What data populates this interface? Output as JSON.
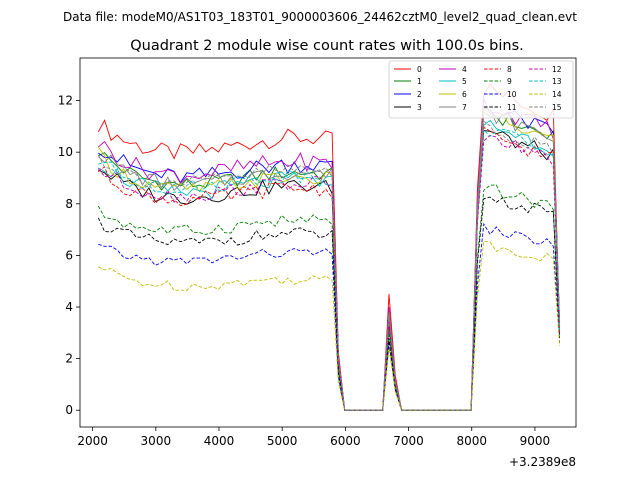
{
  "chart_data": {
    "type": "line",
    "suptitle": "Data file: modeM0/AS1T03_183T01_9000003606_24462cztM0_level2_quad_clean.evt",
    "title": "Quadrant 2 module wise count rates with 100.0s bins.",
    "xlabel": "",
    "ylabel": "",
    "x_offset_label": "+3.2389e8",
    "xlim": [
      1800,
      9650
    ],
    "ylim": [
      -0.65,
      13.65
    ],
    "xticks": [
      2000,
      3000,
      4000,
      5000,
      6000,
      7000,
      8000,
      9000
    ],
    "xtick_labels": [
      "2000",
      "3000",
      "4000",
      "5000",
      "6000",
      "7000",
      "8000",
      "9000"
    ],
    "yticks": [
      0,
      2,
      4,
      6,
      8,
      10,
      12
    ],
    "ytick_labels": [
      "0",
      "2",
      "4",
      "6",
      "8",
      "10",
      "12"
    ],
    "grid": false,
    "legend_placement": "top-right",
    "legend_columns": 4,
    "segments": [
      {
        "x_start": 2090,
        "x_end": 5790,
        "step": 100,
        "role": "active"
      },
      {
        "x": [
          5890,
          5990,
          6090,
          6190,
          6290,
          6390,
          6490,
          6590,
          6690,
          6790,
          6890,
          6990,
          7090,
          7190,
          7290,
          7390,
          7490,
          7590,
          7690,
          7790,
          7890,
          7990
        ],
        "role": "gap"
      },
      {
        "x_start": 8090,
        "x_end": 9290,
        "step": 100,
        "role": "active"
      },
      {
        "x": [
          9390
        ],
        "role": "tail"
      }
    ],
    "spike_shape": {
      "6590": 0.0,
      "6690": 1.0,
      "6790": 0.3
    },
    "series": [
      {
        "name": "0",
        "color": "#ff0000",
        "dashed": false,
        "base": 10.2,
        "high": 11.9,
        "spike": 4.5,
        "wiggle": 0.35,
        "end": 3.0
      },
      {
        "name": "1",
        "color": "#008000",
        "dashed": false,
        "base": 8.9,
        "high": 11.0,
        "spike": 3.6,
        "wiggle": 0.3,
        "end": 3.2
      },
      {
        "name": "2",
        "color": "#0000ff",
        "dashed": false,
        "base": 9.2,
        "high": 11.2,
        "spike": 3.9,
        "wiggle": 0.35,
        "end": 3.4
      },
      {
        "name": "3",
        "color": "#000000",
        "dashed": false,
        "base": 8.4,
        "high": 10.3,
        "spike": 3.3,
        "wiggle": 0.3,
        "end": 3.0
      },
      {
        "name": "4",
        "color": "#bf00bf",
        "dashed": false,
        "base": 9.3,
        "high": 11.3,
        "spike": 4.0,
        "wiggle": 0.35,
        "end": 3.3
      },
      {
        "name": "5",
        "color": "#00bfbf",
        "dashed": false,
        "base": 8.6,
        "high": 10.6,
        "spike": 3.7,
        "wiggle": 0.35,
        "end": 3.1
      },
      {
        "name": "6",
        "color": "#bfbf00",
        "dashed": false,
        "base": 8.7,
        "high": 10.9,
        "spike": 3.8,
        "wiggle": 0.3,
        "end": 3.2
      },
      {
        "name": "7",
        "color": "#808080",
        "dashed": false,
        "base": 8.9,
        "high": 11.0,
        "spike": 3.8,
        "wiggle": 0.3,
        "end": 3.3
      },
      {
        "name": "8",
        "color": "#ff0000",
        "dashed": true,
        "base": 8.3,
        "high": 10.2,
        "spike": 3.4,
        "wiggle": 0.3,
        "end": 3.0
      },
      {
        "name": "9",
        "color": "#008000",
        "dashed": true,
        "base": 7.1,
        "high": 8.2,
        "spike": 3.0,
        "wiggle": 0.25,
        "end": 2.9
      },
      {
        "name": "10",
        "color": "#0000ff",
        "dashed": true,
        "base": 5.9,
        "high": 6.7,
        "spike": 2.6,
        "wiggle": 0.2,
        "end": 2.6
      },
      {
        "name": "11",
        "color": "#000000",
        "dashed": true,
        "base": 6.6,
        "high": 7.9,
        "spike": 2.8,
        "wiggle": 0.25,
        "end": 2.8
      },
      {
        "name": "12",
        "color": "#bf00bf",
        "dashed": true,
        "base": 8.5,
        "high": 10.1,
        "spike": 3.5,
        "wiggle": 0.3,
        "end": 3.0
      },
      {
        "name": "13",
        "color": "#00bfbf",
        "dashed": true,
        "base": 8.8,
        "high": 10.4,
        "spike": 3.6,
        "wiggle": 0.3,
        "end": 3.1
      },
      {
        "name": "14",
        "color": "#bfbf00",
        "dashed": true,
        "base": 4.9,
        "high": 6.1,
        "spike": 2.4,
        "wiggle": 0.2,
        "end": 2.5
      },
      {
        "name": "15",
        "color": "#808080",
        "dashed": true,
        "base": 9.0,
        "high": 10.5,
        "spike": 3.7,
        "wiggle": 0.3,
        "end": 3.2
      }
    ]
  }
}
